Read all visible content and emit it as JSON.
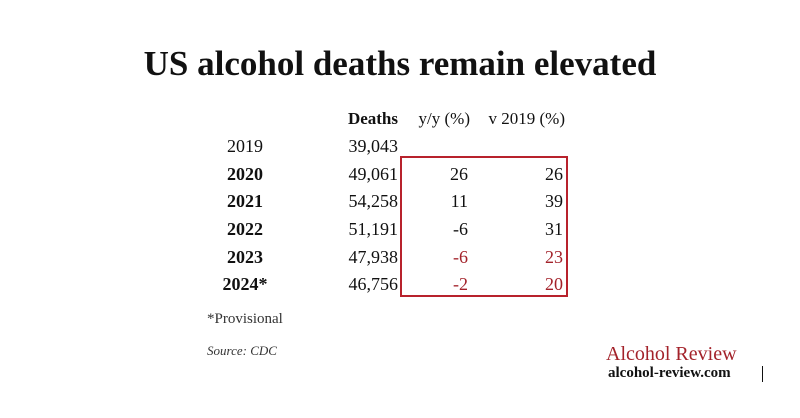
{
  "header": {
    "title": "US alcohol deaths remain elevated"
  },
  "table": {
    "columns": [
      "Deaths",
      "y/y (%)",
      "v 2019 (%)"
    ],
    "rows": [
      [
        "2019",
        "39,043"
      ],
      [
        "2020",
        "49,061",
        "26",
        "26"
      ],
      [
        "2021",
        "54,258",
        "11",
        "39"
      ],
      [
        "2022",
        "51,191",
        "-6",
        "31"
      ],
      [
        "2023",
        "47,938",
        "-6",
        "23"
      ],
      [
        "2024*",
        "46,756",
        "-2",
        "20"
      ]
    ]
  },
  "footnote": "*Provisional",
  "source": "Source: CDC",
  "brand": {
    "name": "Alcohol Review",
    "url": "alcohol-review.com"
  }
}
